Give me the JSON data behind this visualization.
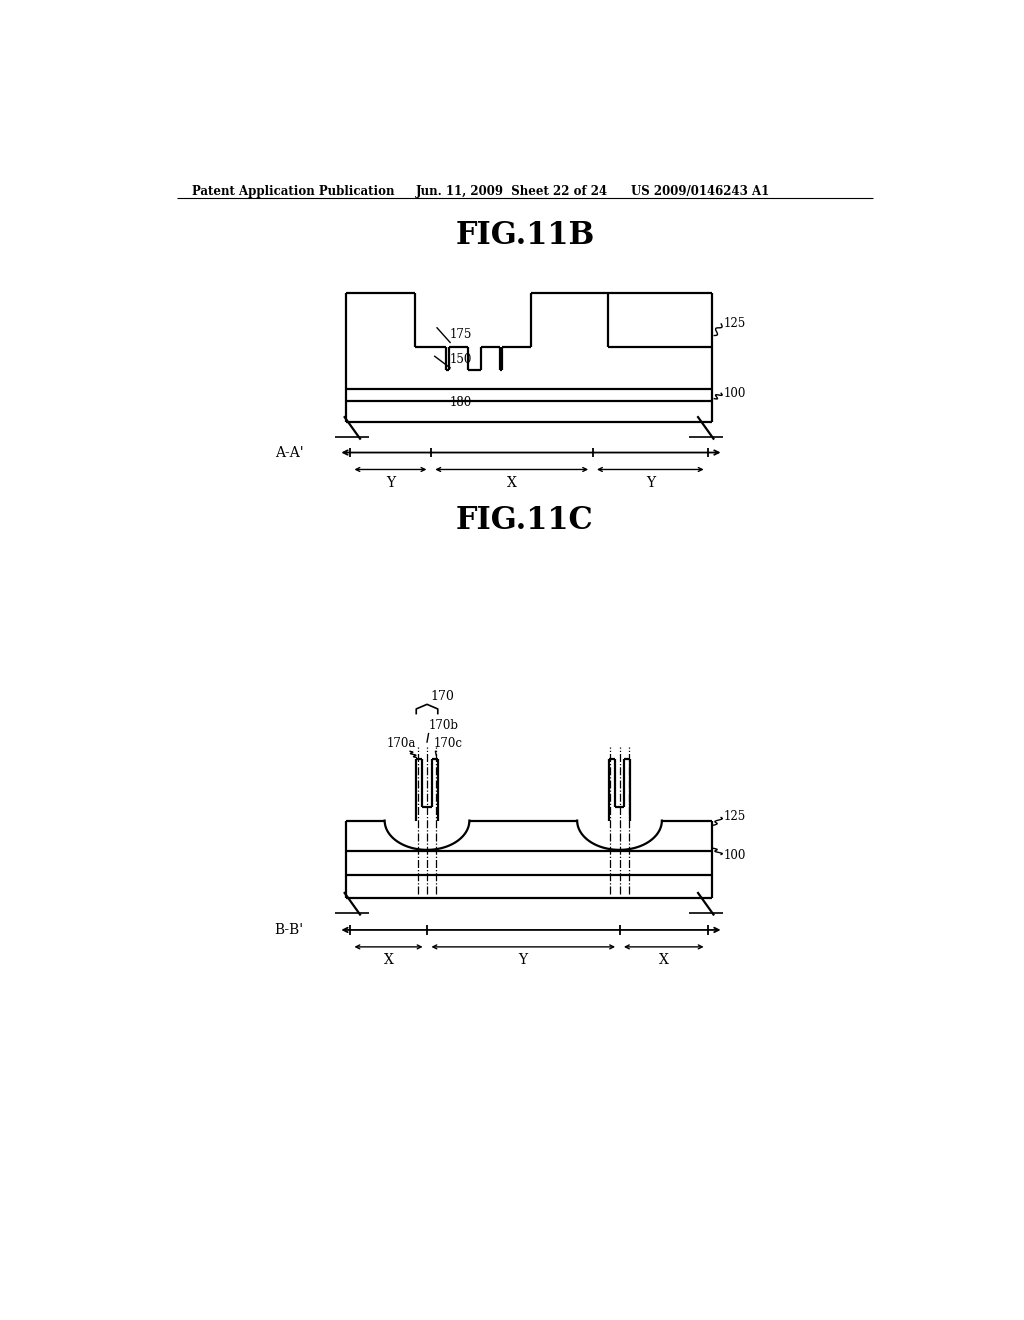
{
  "bg_color": "#ffffff",
  "header_text": "Patent Application Publication",
  "header_date": "Jun. 11, 2009  Sheet 22 of 24",
  "header_patent": "US 2009/0146243 A1",
  "fig11b_title": "FIG.11B",
  "fig11c_title": "FIG.11C",
  "label_125": "125",
  "label_100": "100",
  "label_175": "175",
  "label_150": "150",
  "label_180": "180",
  "label_170": "170",
  "label_170a": "170a",
  "label_170b": "170b",
  "label_170c": "170c",
  "label_AA": "A-A'",
  "label_BB": "B-B'",
  "label_X": "X",
  "label_Y": "Y"
}
